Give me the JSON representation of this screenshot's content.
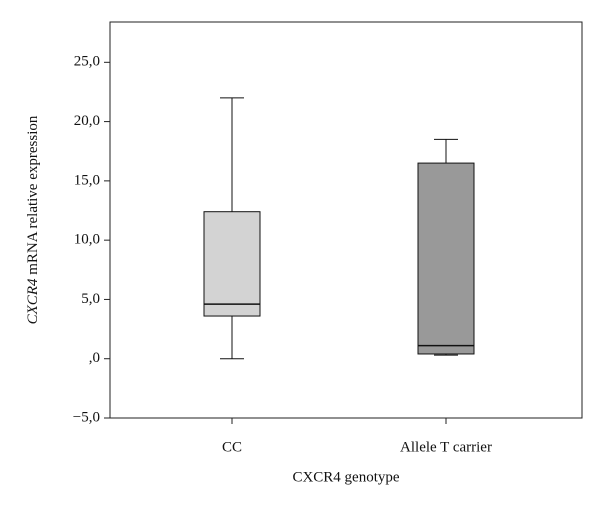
{
  "chart_data": {
    "type": "box",
    "xlabel": "CXCR4 genotype",
    "ylabel_italic": "CXCR4",
    "ylabel": "mRNA relative expression",
    "categories": [
      "CC",
      "Allele T carrier"
    ],
    "colors": [
      "#d3d3d3",
      "#999999"
    ],
    "whisker_low": [
      0.0,
      0.3
    ],
    "q1": [
      3.6,
      0.4
    ],
    "median": [
      4.6,
      1.1
    ],
    "q3": [
      12.4,
      16.5
    ],
    "whisker_high": [
      22.0,
      18.5
    ],
    "ylim": [
      -5,
      28.4
    ],
    "yticks": [
      {
        "value": -5,
        "label": "−5,0"
      },
      {
        "value": 0,
        "label": ",0"
      },
      {
        "value": 5,
        "label": "5,0"
      },
      {
        "value": 10,
        "label": "10,0"
      },
      {
        "value": 15,
        "label": "15,0"
      },
      {
        "value": 20,
        "label": "20,0"
      },
      {
        "value": 25,
        "label": "25,0"
      }
    ]
  }
}
